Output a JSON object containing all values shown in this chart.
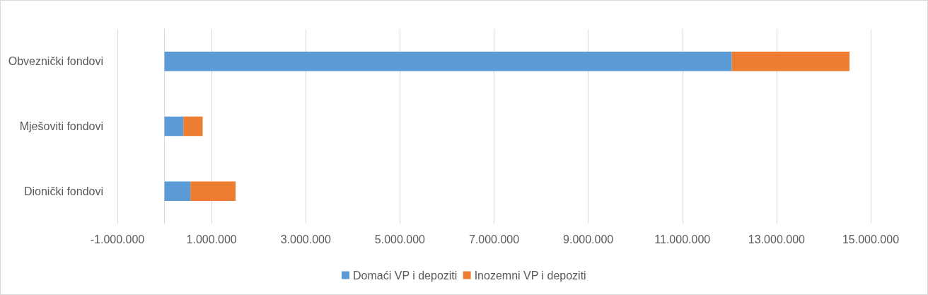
{
  "chart_data": {
    "type": "bar",
    "orientation": "horizontal",
    "stacked": true,
    "categories": [
      "Obveznički fondovi",
      "Mješoviti fondovi",
      "Dionički fondovi"
    ],
    "series": [
      {
        "name": "Domaći VP i depoziti",
        "color": "#5b9bd5",
        "values": [
          12050000,
          400000,
          550000
        ]
      },
      {
        "name": "Inozemni VP i depoziti",
        "color": "#ed7d31",
        "values": [
          2500000,
          410000,
          960000
        ]
      }
    ],
    "xlim": [
      -1000000,
      15000000
    ],
    "xticks": [
      {
        "value": -1000000,
        "label": "-1.000.000"
      },
      {
        "value": 1000000,
        "label": "1.000.000"
      },
      {
        "value": 3000000,
        "label": "3.000.000"
      },
      {
        "value": 5000000,
        "label": "5.000.000"
      },
      {
        "value": 7000000,
        "label": "7.000.000"
      },
      {
        "value": 9000000,
        "label": "9.000.000"
      },
      {
        "value": 11000000,
        "label": "11.000.000"
      },
      {
        "value": 13000000,
        "label": "13.000.000"
      },
      {
        "value": 15000000,
        "label": "15.000.000"
      }
    ],
    "grid": "x",
    "legend": "bottom"
  }
}
